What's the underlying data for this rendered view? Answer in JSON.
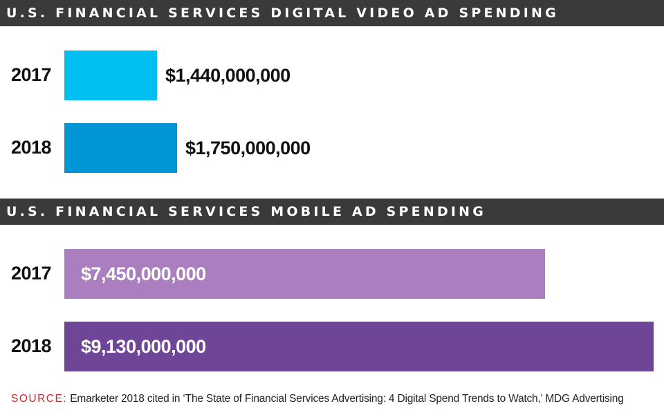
{
  "sections": [
    {
      "title": "U.S. FINANCIAL SERVICES DIGITAL VIDEO AD SPENDING",
      "chart_data": {
        "type": "bar",
        "orientation": "horizontal",
        "categories": [
          "2017",
          "2018"
        ],
        "values": [
          1440000000,
          1750000000
        ],
        "value_labels": [
          "$1,440,000,000",
          "$1,750,000,000"
        ],
        "colors": [
          "#00bef2",
          "#0096d6"
        ],
        "xlim": [
          0,
          9130000000
        ],
        "label_position": "outside"
      }
    },
    {
      "title": "U.S. FINANCIAL SERVICES MOBILE AD SPENDING",
      "chart_data": {
        "type": "bar",
        "orientation": "horizontal",
        "categories": [
          "2017",
          "2018"
        ],
        "values": [
          7450000000,
          9130000000
        ],
        "value_labels": [
          "$7,450,000,000",
          "$9,130,000,000"
        ],
        "colors": [
          "#ab7fbf",
          "#6f4597"
        ],
        "xlim": [
          0,
          9130000000
        ],
        "label_position": "inside"
      }
    }
  ],
  "source": {
    "label": "SOURCE:",
    "text": "Emarketer 2018 cited in ‘The State of Financial Services Advertising: 4 Digital Spend Trends to Watch,’ MDG Advertising"
  }
}
